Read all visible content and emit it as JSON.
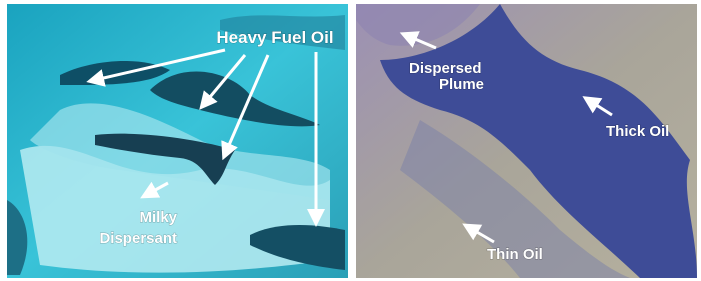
{
  "panels": [
    {
      "labels": [
        "Heavy Fuel Oil",
        "Milky",
        "Dispersant"
      ]
    },
    {
      "labels": [
        "Dispersed",
        "Plume",
        "Thick Oil",
        "Thin Oil"
      ]
    }
  ]
}
